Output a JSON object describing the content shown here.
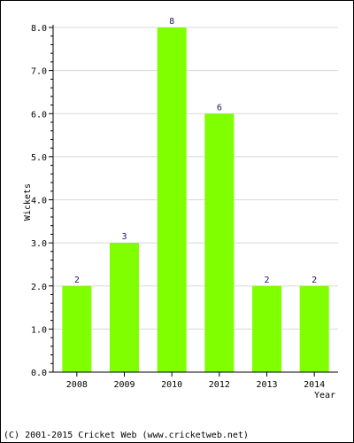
{
  "chart_data": {
    "type": "bar",
    "categories": [
      "2008",
      "2009",
      "2010",
      "2012",
      "2013",
      "2014"
    ],
    "values": [
      2,
      3,
      8,
      6,
      2,
      2
    ],
    "data_labels": [
      "2",
      "3",
      "8",
      "6",
      "2",
      "2"
    ],
    "xlabel": "Year",
    "ylabel": "Wickets",
    "ylim": [
      0,
      8
    ],
    "yticks": [
      "0.0",
      "1.0",
      "2.0",
      "3.0",
      "4.0",
      "5.0",
      "6.0",
      "7.0",
      "8.0"
    ],
    "grid": true,
    "bar_color": "#80ff00",
    "grid_color": "#d8d8d8",
    "label_color": "#1a1a6e"
  },
  "footer": {
    "copyright": "(C) 2001-2015 Cricket Web (www.cricketweb.net)"
  }
}
